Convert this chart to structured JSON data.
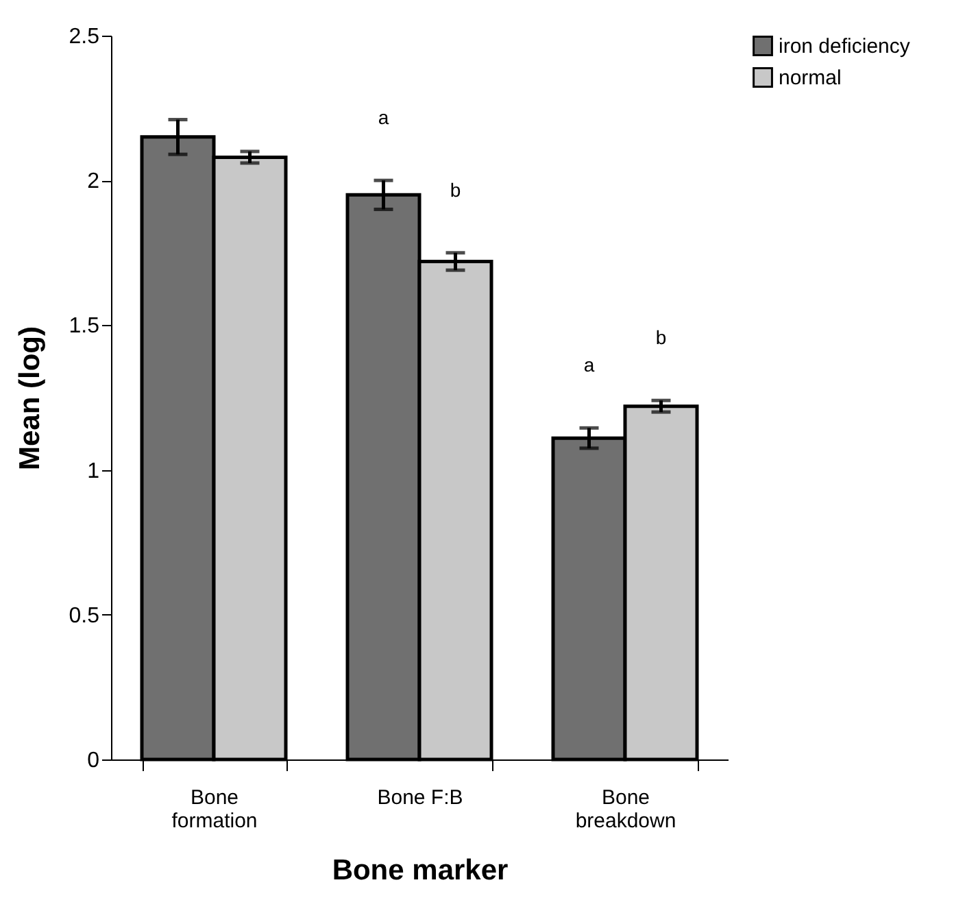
{
  "chart_data": {
    "type": "bar",
    "xlabel": "Bone marker",
    "ylabel": "Mean (log)",
    "categories": [
      "Bone\nformation",
      "Bone F:B",
      "Bone\nbreakdown"
    ],
    "series": [
      {
        "name": "iron deficiency",
        "color": "#707070",
        "values": [
          2.15,
          1.95,
          1.11
        ],
        "errors": [
          0.06,
          0.05,
          0.035
        ]
      },
      {
        "name": "normal",
        "color": "#c8c8c8",
        "values": [
          2.08,
          1.72,
          1.22
        ],
        "errors": [
          0.02,
          0.03,
          0.02
        ]
      }
    ],
    "annotations": [
      "a",
      "b",
      "a",
      "b"
    ],
    "ylim": [
      0,
      2.5
    ],
    "yticks": [
      0,
      0.5,
      1,
      1.5,
      2,
      2.5
    ],
    "grid": false,
    "legend": "top right"
  }
}
